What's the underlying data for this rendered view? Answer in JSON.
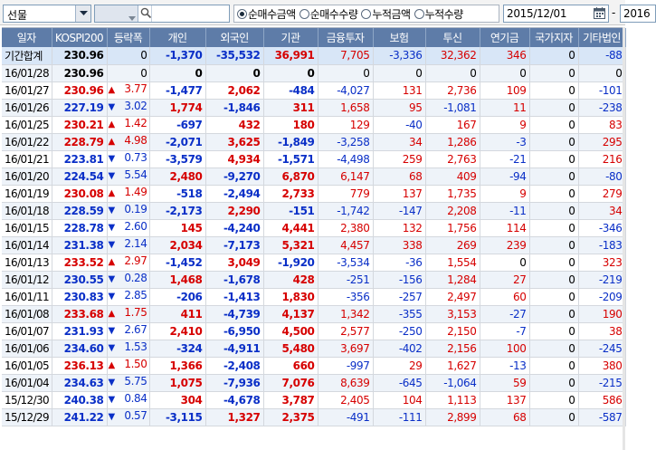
{
  "toolbar": {
    "market_select": "선물",
    "search_value": "",
    "radios": [
      {
        "label": "순매수금액",
        "checked": true
      },
      {
        "label": "순매수수량",
        "checked": false
      },
      {
        "label": "누적금액",
        "checked": false
      },
      {
        "label": "누적수량",
        "checked": false
      }
    ],
    "start_date": "2015/12/01",
    "end_date": "2016",
    "date_separator": "-"
  },
  "table": {
    "columns": [
      "일자",
      "KOSPI200",
      "등락폭",
      "개인",
      "외국인",
      "기관",
      "금융투자",
      "보험",
      "투신",
      "연기금",
      "국가지자",
      "기타법인"
    ],
    "colors": {
      "up": "#d60000",
      "down": "#0a2fc7",
      "header_bg": "#5e7ca8"
    },
    "rows": [
      {
        "date": "기간합계",
        "kospi": "230.96",
        "dir": "flat",
        "chg": "0",
        "indiv": "-1,370",
        "foreign": "-35,532",
        "inst": "36,991",
        "fin": "7,705",
        "ins": "-3,336",
        "trust": "32,362",
        "pension": "346",
        "nation": "0",
        "etc": "-88"
      },
      {
        "date": "16/01/28",
        "kospi": "230.96",
        "dir": "flat",
        "chg": "0",
        "indiv": "0",
        "foreign": "0",
        "inst": "0",
        "fin": "0",
        "ins": "0",
        "trust": "0",
        "pension": "0",
        "nation": "0",
        "etc": "0"
      },
      {
        "date": "16/01/27",
        "kospi": "230.96",
        "dir": "up",
        "chg": "3.77",
        "indiv": "-1,477",
        "foreign": "2,062",
        "inst": "-484",
        "fin": "-4,027",
        "ins": "131",
        "trust": "2,736",
        "pension": "109",
        "nation": "0",
        "etc": "-101"
      },
      {
        "date": "16/01/26",
        "kospi": "227.19",
        "dir": "down",
        "chg": "3.02",
        "indiv": "1,774",
        "foreign": "-1,846",
        "inst": "311",
        "fin": "1,658",
        "ins": "95",
        "trust": "-1,081",
        "pension": "11",
        "nation": "0",
        "etc": "-238"
      },
      {
        "date": "16/01/25",
        "kospi": "230.21",
        "dir": "up",
        "chg": "1.42",
        "indiv": "-697",
        "foreign": "432",
        "inst": "180",
        "fin": "129",
        "ins": "-40",
        "trust": "167",
        "pension": "9",
        "nation": "0",
        "etc": "83"
      },
      {
        "date": "16/01/22",
        "kospi": "228.79",
        "dir": "up",
        "chg": "4.98",
        "indiv": "-2,071",
        "foreign": "3,625",
        "inst": "-1,849",
        "fin": "-3,258",
        "ins": "34",
        "trust": "1,286",
        "pension": "-3",
        "nation": "0",
        "etc": "295"
      },
      {
        "date": "16/01/21",
        "kospi": "223.81",
        "dir": "down",
        "chg": "0.73",
        "indiv": "-3,579",
        "foreign": "4,934",
        "inst": "-1,571",
        "fin": "-4,498",
        "ins": "259",
        "trust": "2,763",
        "pension": "-21",
        "nation": "0",
        "etc": "216"
      },
      {
        "date": "16/01/20",
        "kospi": "224.54",
        "dir": "down",
        "chg": "5.54",
        "indiv": "2,480",
        "foreign": "-9,270",
        "inst": "6,870",
        "fin": "6,147",
        "ins": "68",
        "trust": "409",
        "pension": "-94",
        "nation": "0",
        "etc": "-80"
      },
      {
        "date": "16/01/19",
        "kospi": "230.08",
        "dir": "up",
        "chg": "1.49",
        "indiv": "-518",
        "foreign": "-2,494",
        "inst": "2,733",
        "fin": "779",
        "ins": "137",
        "trust": "1,735",
        "pension": "9",
        "nation": "0",
        "etc": "279"
      },
      {
        "date": "16/01/18",
        "kospi": "228.59",
        "dir": "down",
        "chg": "0.19",
        "indiv": "-2,173",
        "foreign": "2,290",
        "inst": "-151",
        "fin": "-1,742",
        "ins": "-147",
        "trust": "2,208",
        "pension": "-11",
        "nation": "0",
        "etc": "34"
      },
      {
        "date": "16/01/15",
        "kospi": "228.78",
        "dir": "down",
        "chg": "2.60",
        "indiv": "145",
        "foreign": "-4,240",
        "inst": "4,441",
        "fin": "2,380",
        "ins": "132",
        "trust": "1,756",
        "pension": "114",
        "nation": "0",
        "etc": "-346"
      },
      {
        "date": "16/01/14",
        "kospi": "231.38",
        "dir": "down",
        "chg": "2.14",
        "indiv": "2,034",
        "foreign": "-7,173",
        "inst": "5,321",
        "fin": "4,457",
        "ins": "338",
        "trust": "269",
        "pension": "239",
        "nation": "0",
        "etc": "-183"
      },
      {
        "date": "16/01/13",
        "kospi": "233.52",
        "dir": "up",
        "chg": "2.97",
        "indiv": "-1,452",
        "foreign": "3,049",
        "inst": "-1,920",
        "fin": "-3,534",
        "ins": "-36",
        "trust": "1,554",
        "pension": "0",
        "nation": "0",
        "etc": "323"
      },
      {
        "date": "16/01/12",
        "kospi": "230.55",
        "dir": "down",
        "chg": "0.28",
        "indiv": "1,468",
        "foreign": "-1,678",
        "inst": "428",
        "fin": "-251",
        "ins": "-156",
        "trust": "1,284",
        "pension": "27",
        "nation": "0",
        "etc": "-219"
      },
      {
        "date": "16/01/11",
        "kospi": "230.83",
        "dir": "down",
        "chg": "2.85",
        "indiv": "-206",
        "foreign": "-1,413",
        "inst": "1,830",
        "fin": "-356",
        "ins": "-257",
        "trust": "2,497",
        "pension": "60",
        "nation": "0",
        "etc": "-209"
      },
      {
        "date": "16/01/08",
        "kospi": "233.68",
        "dir": "up",
        "chg": "1.75",
        "indiv": "411",
        "foreign": "-4,739",
        "inst": "4,137",
        "fin": "1,342",
        "ins": "-355",
        "trust": "3,153",
        "pension": "-27",
        "nation": "0",
        "etc": "190"
      },
      {
        "date": "16/01/07",
        "kospi": "231.93",
        "dir": "down",
        "chg": "2.67",
        "indiv": "2,410",
        "foreign": "-6,950",
        "inst": "4,500",
        "fin": "2,577",
        "ins": "-250",
        "trust": "2,150",
        "pension": "-7",
        "nation": "0",
        "etc": "38"
      },
      {
        "date": "16/01/06",
        "kospi": "234.60",
        "dir": "down",
        "chg": "1.53",
        "indiv": "-324",
        "foreign": "-4,911",
        "inst": "5,480",
        "fin": "3,697",
        "ins": "-402",
        "trust": "2,156",
        "pension": "100",
        "nation": "0",
        "etc": "-245"
      },
      {
        "date": "16/01/05",
        "kospi": "236.13",
        "dir": "up",
        "chg": "1.50",
        "indiv": "1,366",
        "foreign": "-2,408",
        "inst": "660",
        "fin": "-997",
        "ins": "29",
        "trust": "1,627",
        "pension": "-13",
        "nation": "0",
        "etc": "380"
      },
      {
        "date": "16/01/04",
        "kospi": "234.63",
        "dir": "down",
        "chg": "5.75",
        "indiv": "1,075",
        "foreign": "-7,936",
        "inst": "7,076",
        "fin": "8,639",
        "ins": "-645",
        "trust": "-1,064",
        "pension": "59",
        "nation": "0",
        "etc": "-215"
      },
      {
        "date": "15/12/30",
        "kospi": "240.38",
        "dir": "down",
        "chg": "0.84",
        "indiv": "304",
        "foreign": "-4,678",
        "inst": "3,787",
        "fin": "2,405",
        "ins": "104",
        "trust": "1,113",
        "pension": "137",
        "nation": "0",
        "etc": "586"
      },
      {
        "date": "15/12/29",
        "kospi": "241.22",
        "dir": "down",
        "chg": "0.57",
        "indiv": "-3,115",
        "foreign": "1,327",
        "inst": "2,375",
        "fin": "-491",
        "ins": "-111",
        "trust": "2,899",
        "pension": "68",
        "nation": "0",
        "etc": "-587"
      }
    ]
  }
}
